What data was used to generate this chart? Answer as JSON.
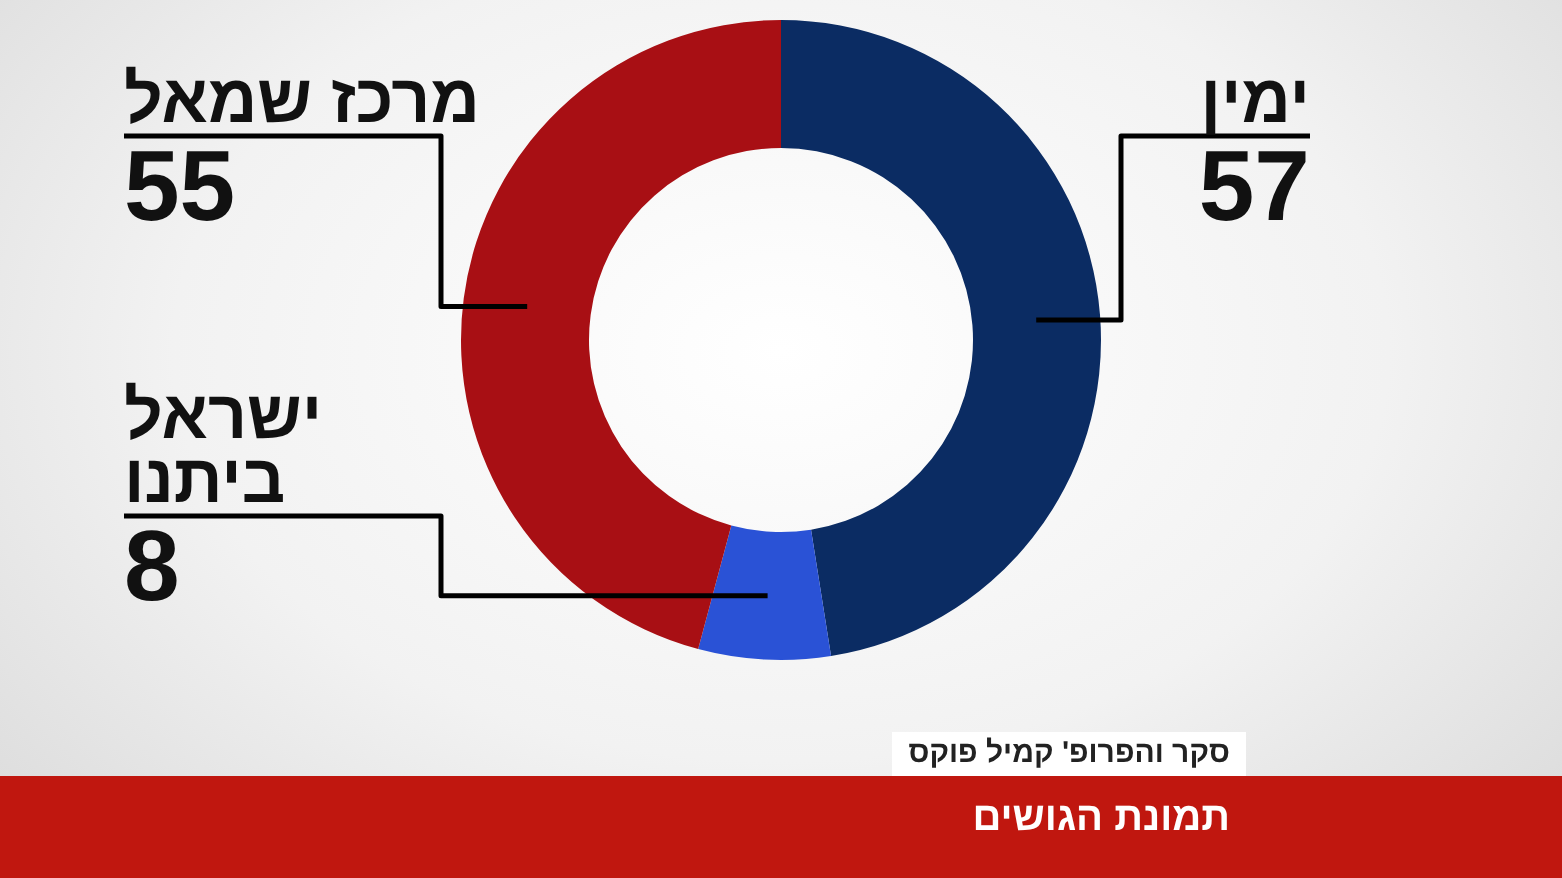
{
  "chart_data": {
    "type": "donut",
    "title": "תמונת הגושים",
    "annotations": [
      "סקר והפרופ' קמיל פוקס"
    ],
    "categories": [
      "ימין",
      "ישראל ביתנו",
      "מרכז שמאל"
    ],
    "values": [
      57,
      8,
      55
    ],
    "colors": [
      "#0b2c63",
      "#2a52d6",
      "#a80f14"
    ],
    "data_labels": true,
    "legend": false
  }
}
